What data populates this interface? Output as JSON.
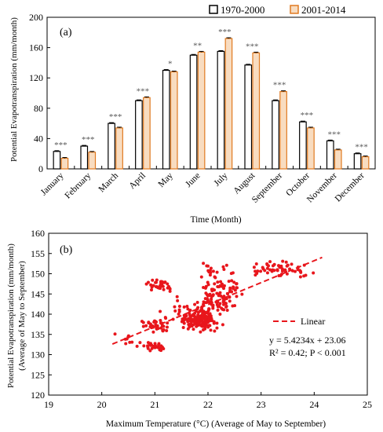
{
  "chart_data": [
    {
      "type": "bar",
      "panel_label": "(a)",
      "title": "",
      "xlabel": "Time (Month)",
      "ylabel": "Potential Evapotranspiration (mm/month)",
      "ylim": [
        0,
        200
      ],
      "yticks": [
        0,
        40,
        80,
        120,
        160,
        200
      ],
      "grid": false,
      "legend_position": "top-right",
      "categories": [
        "January",
        "February",
        "March",
        "April",
        "May",
        "June",
        "July",
        "August",
        "September",
        "October",
        "November",
        "December"
      ],
      "series": [
        {
          "name": "1970-2000",
          "color": "#ffffff",
          "stroke": "#000000",
          "values": [
            23,
            30,
            60,
            90,
            130,
            150,
            155,
            137,
            90,
            62,
            37,
            20
          ]
        },
        {
          "name": "2001-2014",
          "color": "#f8dcc0",
          "stroke": "#e07a20",
          "values": [
            14,
            22,
            54,
            94,
            128,
            154,
            172,
            153,
            102,
            54,
            25,
            16
          ]
        }
      ],
      "error": [
        1.0,
        1.0,
        1.0,
        1.0,
        1.0,
        1.0,
        1.0,
        1.0,
        1.0,
        1.0,
        1.0,
        1.0
      ],
      "significance": [
        "***",
        "***",
        "***",
        "***",
        "*",
        "**",
        "***",
        "***",
        "***",
        "***",
        "***",
        "***"
      ]
    },
    {
      "type": "scatter",
      "panel_label": "(b)",
      "title": "",
      "xlabel": "Maximum Temperature (°C) (Average of May to September)",
      "ylabel": "Potential Evapotranspiration (mm/month)",
      "ylabel2": "(Average of May to September)",
      "xlim": [
        19,
        25
      ],
      "ylim": [
        120,
        160
      ],
      "xticks": [
        19,
        20,
        21,
        22,
        23,
        24,
        25
      ],
      "yticks": [
        120,
        125,
        130,
        135,
        140,
        145,
        150,
        155,
        160
      ],
      "grid": false,
      "point_color": "#e8161c",
      "legend": {
        "label": "Linear",
        "position": "right"
      },
      "fit": {
        "slope": 5.4234,
        "intercept": 23.06,
        "x_range": [
          20.2,
          24.15
        ]
      },
      "annotation": {
        "equation": "y = 5.4234x + 23.06",
        "stats": "R² = 0.42;  P < 0.001"
      },
      "clusters": [
        {
          "cx": 21.85,
          "cy": 138.5,
          "sx": 0.22,
          "sy": 1.6,
          "n": 150
        },
        {
          "cx": 22.1,
          "cy": 142.5,
          "sx": 0.28,
          "sy": 2.0,
          "n": 70
        },
        {
          "cx": 22.25,
          "cy": 146.5,
          "sx": 0.3,
          "sy": 2.0,
          "n": 45
        },
        {
          "cx": 22.1,
          "cy": 151.0,
          "sx": 0.25,
          "sy": 1.5,
          "n": 18
        },
        {
          "cx": 23.35,
          "cy": 151.2,
          "sx": 0.35,
          "sy": 1.1,
          "n": 60
        },
        {
          "cx": 21.1,
          "cy": 147.3,
          "sx": 0.17,
          "sy": 1.0,
          "n": 35
        },
        {
          "cx": 21.0,
          "cy": 137.2,
          "sx": 0.2,
          "sy": 1.1,
          "n": 40
        },
        {
          "cx": 21.0,
          "cy": 132.0,
          "sx": 0.17,
          "sy": 0.6,
          "n": 28
        },
        {
          "cx": 20.5,
          "cy": 133.5,
          "sx": 0.22,
          "sy": 1.6,
          "n": 10
        },
        {
          "cx": 21.5,
          "cy": 140.5,
          "sx": 0.25,
          "sy": 2.5,
          "n": 22
        }
      ]
    }
  ]
}
